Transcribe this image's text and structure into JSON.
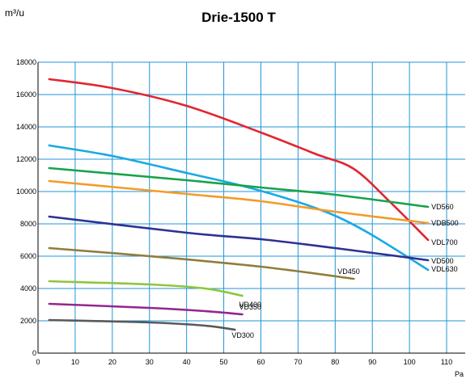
{
  "chart_data": {
    "type": "line",
    "title": "Drie-1500 T",
    "ylabel_unit": "m³/u",
    "xlabel": "Pa",
    "xlim": [
      0,
      115
    ],
    "ylim": [
      0,
      18000
    ],
    "x_ticks": [
      0,
      10,
      20,
      30,
      40,
      50,
      60,
      70,
      80,
      90,
      100,
      110
    ],
    "y_ticks": [
      0,
      2000,
      4000,
      6000,
      8000,
      10000,
      12000,
      14000,
      16000,
      18000
    ],
    "grid": true,
    "colors": {
      "grid": "#1f96d8",
      "VDL700": "#e32530",
      "VDL630": "#1aa9e3",
      "VD560": "#17a34a",
      "VDB500": "#f49b2a",
      "VD500": "#2e3192",
      "VD450": "#8f7d3a",
      "VD400": "#8dc63f",
      "VD350": "#92278f",
      "VD300": "#58595b"
    },
    "series": [
      {
        "name": "VDL700",
        "points": [
          [
            3,
            16950
          ],
          [
            20,
            16400
          ],
          [
            40,
            15300
          ],
          [
            60,
            13650
          ],
          [
            75,
            12300
          ],
          [
            85,
            11400
          ],
          [
            95,
            9300
          ],
          [
            105,
            7000
          ]
        ]
      },
      {
        "name": "VDL630",
        "points": [
          [
            3,
            12850
          ],
          [
            20,
            12200
          ],
          [
            40,
            11150
          ],
          [
            55,
            10350
          ],
          [
            70,
            9350
          ],
          [
            80,
            8500
          ],
          [
            90,
            7300
          ],
          [
            105,
            5150
          ]
        ]
      },
      {
        "name": "VD560",
        "points": [
          [
            3,
            11450
          ],
          [
            40,
            10700
          ],
          [
            60,
            10250
          ],
          [
            80,
            9800
          ],
          [
            105,
            9050
          ]
        ]
      },
      {
        "name": "VDB500",
        "points": [
          [
            3,
            10650
          ],
          [
            40,
            9850
          ],
          [
            60,
            9400
          ],
          [
            80,
            8750
          ],
          [
            105,
            8050
          ]
        ]
      },
      {
        "name": "VD500",
        "points": [
          [
            3,
            8450
          ],
          [
            40,
            7450
          ],
          [
            60,
            7050
          ],
          [
            80,
            6500
          ],
          [
            105,
            5750
          ]
        ]
      },
      {
        "name": "VD450",
        "points": [
          [
            3,
            6500
          ],
          [
            30,
            6000
          ],
          [
            60,
            5350
          ],
          [
            85,
            4600
          ]
        ]
      },
      {
        "name": "VD400",
        "points": [
          [
            3,
            4450
          ],
          [
            30,
            4250
          ],
          [
            45,
            4000
          ],
          [
            55,
            3550
          ]
        ]
      },
      {
        "name": "VD350",
        "points": [
          [
            3,
            3050
          ],
          [
            30,
            2800
          ],
          [
            45,
            2600
          ],
          [
            55,
            2400
          ]
        ]
      },
      {
        "name": "VD300",
        "points": [
          [
            3,
            2050
          ],
          [
            30,
            1900
          ],
          [
            45,
            1700
          ],
          [
            53,
            1450
          ]
        ]
      }
    ]
  }
}
